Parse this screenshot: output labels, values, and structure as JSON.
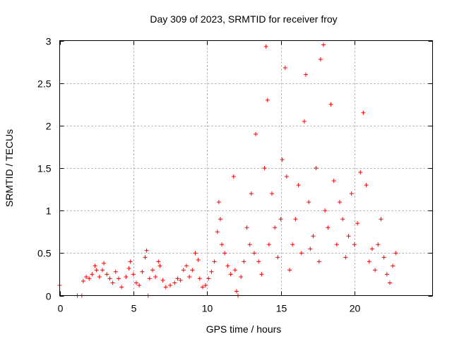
{
  "chart_data": {
    "type": "scatter",
    "title": "Day 309 of 2023, SRMTID for receiver froy",
    "xlabel": "GPS time / hours",
    "ylabel": "SRMTID / TECUs",
    "xlim": [
      0,
      25.3
    ],
    "ylim": [
      0,
      3
    ],
    "xticks": [
      0,
      5,
      10,
      15,
      20
    ],
    "yticks": [
      0,
      0.5,
      1,
      1.5,
      2,
      2.5,
      3
    ],
    "xtick_labels": [
      "0",
      "5",
      "10",
      "15",
      "20"
    ],
    "ytick_labels": [
      "0",
      "0.5",
      "1",
      "1.5",
      "2",
      "2.5",
      "3"
    ],
    "grid": true,
    "marker": "+",
    "series_color": "#ff0000",
    "series": [
      {
        "name": "SRMTID",
        "points": [
          [
            0.0,
            0.12
          ],
          [
            1.2,
            0.0
          ],
          [
            1.5,
            0.0
          ],
          [
            1.6,
            0.17
          ],
          [
            1.8,
            0.22
          ],
          [
            2.0,
            0.2
          ],
          [
            2.2,
            0.25
          ],
          [
            2.4,
            0.35
          ],
          [
            2.5,
            0.3
          ],
          [
            2.7,
            0.22
          ],
          [
            2.9,
            0.3
          ],
          [
            3.0,
            0.38
          ],
          [
            3.2,
            0.25
          ],
          [
            3.4,
            0.2
          ],
          [
            3.6,
            0.15
          ],
          [
            3.8,
            0.28
          ],
          [
            4.0,
            0.2
          ],
          [
            4.2,
            0.1
          ],
          [
            4.5,
            0.22
          ],
          [
            4.7,
            0.32
          ],
          [
            4.8,
            0.4
          ],
          [
            5.0,
            0.25
          ],
          [
            5.2,
            0.15
          ],
          [
            5.4,
            0.12
          ],
          [
            5.6,
            0.28
          ],
          [
            5.8,
            0.45
          ],
          [
            5.9,
            0.53
          ],
          [
            6.0,
            0.0
          ],
          [
            6.1,
            0.2
          ],
          [
            6.3,
            0.3
          ],
          [
            6.5,
            0.22
          ],
          [
            6.7,
            0.4
          ],
          [
            6.8,
            0.35
          ],
          [
            7.0,
            0.18
          ],
          [
            7.2,
            0.1
          ],
          [
            7.5,
            0.12
          ],
          [
            7.8,
            0.15
          ],
          [
            8.0,
            0.2
          ],
          [
            8.2,
            0.18
          ],
          [
            8.4,
            0.3
          ],
          [
            8.6,
            0.35
          ],
          [
            8.8,
            0.22
          ],
          [
            9.0,
            0.3
          ],
          [
            9.2,
            0.5
          ],
          [
            9.4,
            0.42
          ],
          [
            9.5,
            0.2
          ],
          [
            9.7,
            0.1
          ],
          [
            9.9,
            0.12
          ],
          [
            10.1,
            0.2
          ],
          [
            10.3,
            0.28
          ],
          [
            10.5,
            0.4
          ],
          [
            10.7,
            0.75
          ],
          [
            10.8,
            1.1
          ],
          [
            10.9,
            0.9
          ],
          [
            11.0,
            0.6
          ],
          [
            11.2,
            0.5
          ],
          [
            11.4,
            0.35
          ],
          [
            11.6,
            0.25
          ],
          [
            11.8,
            1.4
          ],
          [
            11.9,
            0.3
          ],
          [
            12.0,
            0.05
          ],
          [
            12.1,
            0.0
          ],
          [
            12.3,
            0.22
          ],
          [
            12.5,
            0.4
          ],
          [
            12.7,
            0.8
          ],
          [
            12.9,
            0.6
          ],
          [
            13.0,
            1.2
          ],
          [
            13.2,
            0.5
          ],
          [
            13.3,
            1.9
          ],
          [
            13.5,
            0.4
          ],
          [
            13.7,
            0.25
          ],
          [
            13.9,
            1.5
          ],
          [
            14.0,
            2.93
          ],
          [
            14.1,
            2.3
          ],
          [
            14.2,
            0.6
          ],
          [
            14.4,
            1.2
          ],
          [
            14.6,
            0.8
          ],
          [
            14.8,
            0.45
          ],
          [
            15.0,
            0.9
          ],
          [
            15.1,
            1.6
          ],
          [
            15.3,
            2.68
          ],
          [
            15.4,
            1.4
          ],
          [
            15.6,
            0.3
          ],
          [
            15.8,
            0.6
          ],
          [
            16.0,
            0.9
          ],
          [
            16.2,
            1.3
          ],
          [
            16.4,
            0.5
          ],
          [
            16.6,
            2.05
          ],
          [
            16.7,
            2.6
          ],
          [
            16.9,
            1.1
          ],
          [
            17.0,
            0.55
          ],
          [
            17.2,
            0.7
          ],
          [
            17.4,
            1.5
          ],
          [
            17.6,
            0.4
          ],
          [
            17.7,
            2.78
          ],
          [
            17.9,
            2.95
          ],
          [
            18.0,
            1.0
          ],
          [
            18.2,
            0.8
          ],
          [
            18.4,
            2.25
          ],
          [
            18.6,
            1.35
          ],
          [
            18.8,
            0.6
          ],
          [
            19.0,
            1.1
          ],
          [
            19.2,
            0.9
          ],
          [
            19.4,
            0.45
          ],
          [
            19.6,
            0.7
          ],
          [
            19.8,
            1.2
          ],
          [
            20.0,
            0.6
          ],
          [
            20.2,
            0.85
          ],
          [
            20.4,
            1.45
          ],
          [
            20.6,
            2.15
          ],
          [
            20.8,
            1.3
          ],
          [
            21.0,
            0.4
          ],
          [
            21.2,
            0.55
          ],
          [
            21.4,
            0.3
          ],
          [
            21.6,
            0.6
          ],
          [
            21.8,
            0.9
          ],
          [
            22.0,
            0.45
          ],
          [
            22.2,
            0.25
          ],
          [
            22.4,
            0.15
          ],
          [
            22.6,
            0.35
          ],
          [
            22.8,
            0.5
          ]
        ]
      }
    ]
  }
}
